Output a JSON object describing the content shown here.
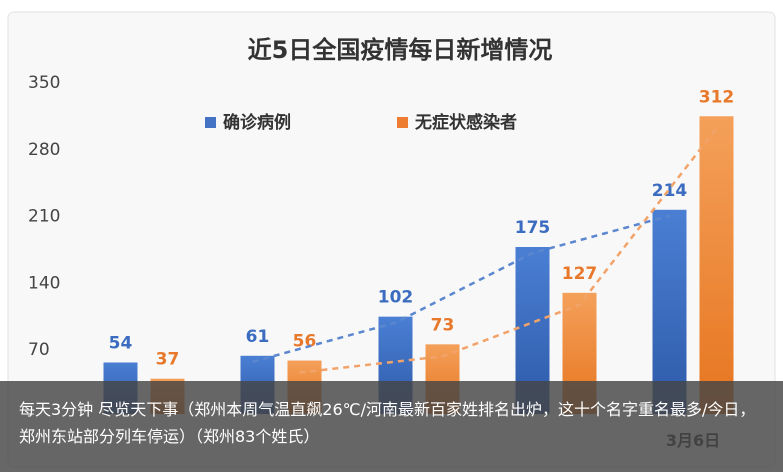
{
  "chart_data": {
    "type": "bar",
    "title": "近5日全国疫情每日新增情况",
    "categories": [
      "",
      "",
      "",
      "",
      "3月6日"
    ],
    "series": [
      {
        "name": "确诊病例",
        "color": "#4472C4",
        "values": [
          54,
          61,
          102,
          175,
          214
        ]
      },
      {
        "name": "无症状感染者",
        "color": "#ED7D31",
        "values": [
          37,
          56,
          73,
          127,
          312
        ]
      }
    ],
    "ylim": [
      0,
      350
    ],
    "yticks": [
      70,
      140,
      210,
      280,
      350
    ],
    "trendlines": true,
    "grid": false,
    "legend": "top-center",
    "xlabel": "",
    "ylabel": ""
  },
  "caption": {
    "text": "每天3分钟 尽览天下事（郑州本周气温直飙26℃/河南最新百家姓排名出炉，这十个名字重名最多/今日，郑州东站部分列车停运）（郑州83个姓氏）"
  }
}
